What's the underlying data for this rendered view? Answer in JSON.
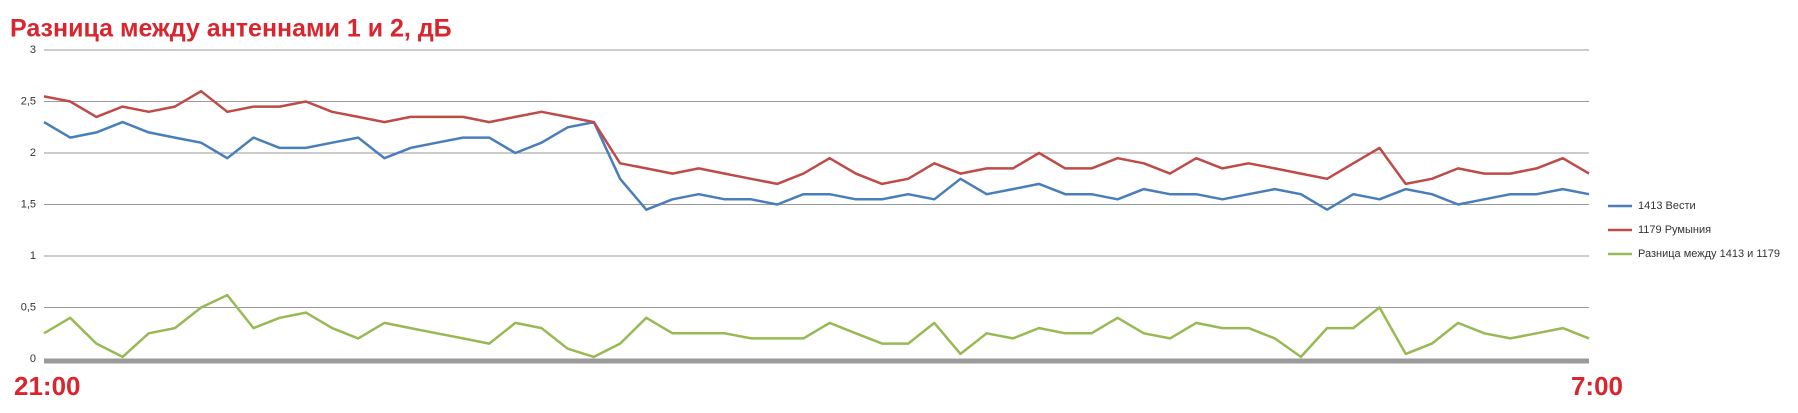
{
  "chart_data": {
    "type": "line",
    "title": "Разница между антеннами 1 и 2, дБ",
    "categories": [
      "21:00",
      null,
      null,
      null,
      null,
      null,
      null,
      null,
      null,
      null,
      null,
      null,
      null,
      null,
      null,
      null,
      null,
      null,
      null,
      null,
      null,
      null,
      null,
      null,
      null,
      null,
      null,
      null,
      null,
      null,
      null,
      null,
      null,
      null,
      null,
      null,
      null,
      null,
      null,
      null,
      null,
      null,
      null,
      null,
      null,
      null,
      null,
      null,
      null,
      null,
      null,
      null,
      null,
      null,
      null,
      null,
      null,
      null,
      null,
      "7:00"
    ],
    "series": [
      {
        "name": "1413 Вести",
        "color": "#4a7ebb",
        "values": [
          2.3,
          2.15,
          2.2,
          2.3,
          2.2,
          2.15,
          2.1,
          1.95,
          2.15,
          2.05,
          2.05,
          2.1,
          2.15,
          1.95,
          2.05,
          2.1,
          2.15,
          2.15,
          2.0,
          2.1,
          2.25,
          2.3,
          1.75,
          1.45,
          1.55,
          1.6,
          1.55,
          1.55,
          1.5,
          1.6,
          1.6,
          1.55,
          1.55,
          1.6,
          1.55,
          1.75,
          1.6,
          1.65,
          1.7,
          1.6,
          1.6,
          1.55,
          1.65,
          1.6,
          1.6,
          1.55,
          1.6,
          1.65,
          1.6,
          1.45,
          1.6,
          1.55,
          1.65,
          1.6,
          1.5,
          1.55,
          1.6,
          1.6,
          1.65,
          1.6
        ]
      },
      {
        "name": "1179 Румыния",
        "color": "#be4b48",
        "values": [
          2.55,
          2.5,
          2.35,
          2.45,
          2.4,
          2.45,
          2.6,
          2.4,
          2.45,
          2.45,
          2.5,
          2.4,
          2.35,
          2.3,
          2.35,
          2.35,
          2.35,
          2.3,
          2.35,
          2.4,
          2.35,
          2.3,
          1.9,
          1.85,
          1.8,
          1.85,
          1.8,
          1.75,
          1.7,
          1.8,
          1.95,
          1.8,
          1.7,
          1.75,
          1.9,
          1.8,
          1.85,
          1.85,
          2.0,
          1.85,
          1.85,
          1.95,
          1.9,
          1.8,
          1.95,
          1.85,
          1.9,
          1.85,
          1.8,
          1.75,
          1.9,
          2.05,
          1.7,
          1.75,
          1.85,
          1.8,
          1.8,
          1.85,
          1.95,
          1.8
        ]
      },
      {
        "name": "Разница между 1413 и 1179",
        "color": "#98b954",
        "values": [
          0.25,
          0.4,
          0.15,
          0.02,
          0.25,
          0.3,
          0.5,
          0.62,
          0.3,
          0.4,
          0.45,
          0.3,
          0.2,
          0.35,
          0.3,
          0.25,
          0.2,
          0.15,
          0.35,
          0.3,
          0.1,
          0.02,
          0.15,
          0.4,
          0.25,
          0.25,
          0.25,
          0.2,
          0.2,
          0.2,
          0.35,
          0.25,
          0.15,
          0.15,
          0.35,
          0.05,
          0.25,
          0.2,
          0.3,
          0.25,
          0.25,
          0.4,
          0.25,
          0.2,
          0.35,
          0.3,
          0.3,
          0.2,
          0.02,
          0.3,
          0.3,
          0.5,
          0.05,
          0.15,
          0.35,
          0.25,
          0.2,
          0.25,
          0.3,
          0.2
        ]
      }
    ],
    "ylim": [
      0,
      3
    ],
    "yticks": [
      0,
      {
        "value": 0.5,
        "label": "0,5"
      },
      1,
      {
        "value": 1.5,
        "label": "1,5"
      },
      2,
      {
        "value": 2.5,
        "label": "2,5"
      },
      3
    ],
    "grid": true,
    "legend": "right"
  }
}
